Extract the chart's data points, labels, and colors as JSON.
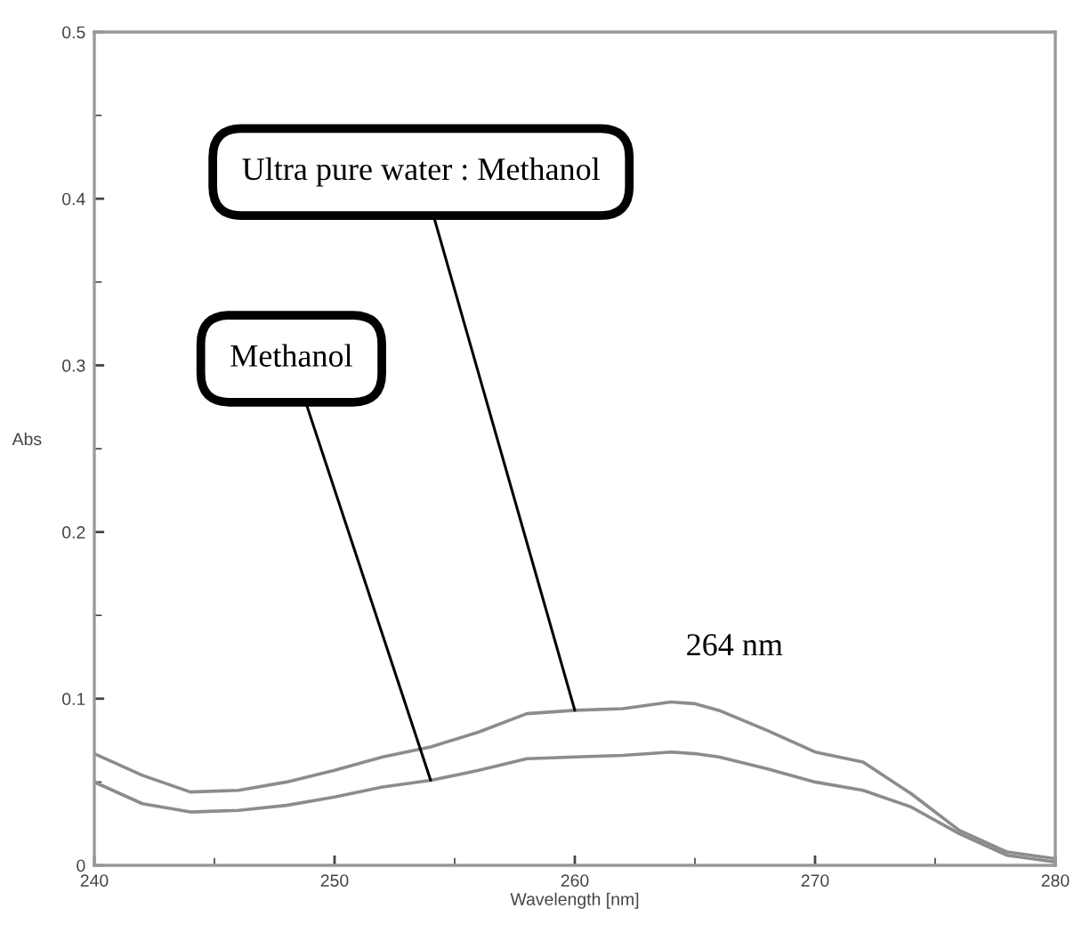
{
  "chart_data": {
    "type": "line",
    "xlabel": "Wavelength [nm]",
    "ylabel": "Abs",
    "x": [
      240,
      242,
      244,
      246,
      248,
      250,
      252,
      254,
      256,
      258,
      260,
      262,
      264,
      265,
      266,
      268,
      270,
      272,
      274,
      276,
      278,
      280
    ],
    "series": [
      {
        "name": "Ultra pure water : Methanol",
        "color": "#8c8c8c",
        "values": [
          0.067,
          0.054,
          0.044,
          0.045,
          0.05,
          0.057,
          0.065,
          0.071,
          0.08,
          0.091,
          0.093,
          0.094,
          0.098,
          0.097,
          0.093,
          0.081,
          0.068,
          0.062,
          0.043,
          0.021,
          0.008,
          0.004
        ]
      },
      {
        "name": "Methanol",
        "color": "#8c8c8c",
        "values": [
          0.05,
          0.037,
          0.032,
          0.033,
          0.036,
          0.041,
          0.047,
          0.051,
          0.057,
          0.064,
          0.065,
          0.066,
          0.068,
          0.067,
          0.065,
          0.058,
          0.05,
          0.045,
          0.035,
          0.019,
          0.006,
          0.002
        ]
      }
    ],
    "annotations": [
      {
        "text": "264 nm",
        "x": 264,
        "y": 0.098
      }
    ],
    "xlim": [
      240,
      280
    ],
    "xticks": [
      240,
      250,
      260,
      270,
      280
    ],
    "ylim": [
      0,
      0.5
    ],
    "yticks": [
      0,
      0.1,
      0.2,
      0.3,
      0.4,
      0.5
    ],
    "grid": false,
    "legend": false,
    "marker": "none",
    "line_style": "solid"
  }
}
